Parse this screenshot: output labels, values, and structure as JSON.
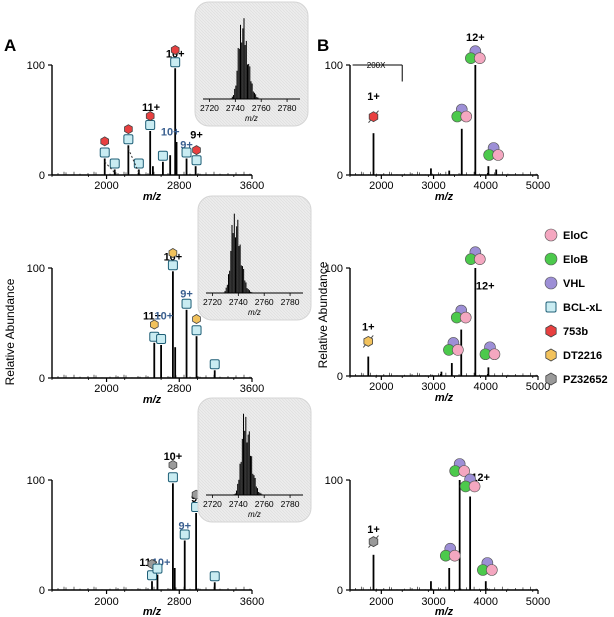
{
  "figure": {
    "panel_labels": [
      "A",
      "B"
    ],
    "y_axis_label": "Relative Abundance",
    "x_axis_label": "m/z",
    "scale_marker": "200X"
  },
  "legend": [
    {
      "name": "EloC",
      "shape": "circle",
      "color": "#f4a7c0"
    },
    {
      "name": "EloB",
      "shape": "circle",
      "color": "#4cc94c"
    },
    {
      "name": "VHL",
      "shape": "circle",
      "color": "#9d8fd6"
    },
    {
      "name": "BCL-xL",
      "shape": "square",
      "color": "#c9ecf2"
    },
    {
      "name": "753b",
      "shape": "hexagon",
      "color": "#e84040"
    },
    {
      "name": "DT2216",
      "shape": "hexagon",
      "color": "#f2c25c"
    },
    {
      "name": "PZ32652",
      "shape": "hexagon",
      "color": "#9a9a9a"
    }
  ],
  "chart_data": [
    {
      "id": "A1",
      "type": "bar",
      "xlabel": "m/z",
      "ylabel": "",
      "xlim": [
        1400,
        3600
      ],
      "ylim": [
        0,
        100
      ],
      "xticks": [
        2000,
        2800,
        3600
      ],
      "yticks": [
        0,
        100
      ],
      "peaks": [
        [
          1980,
          15
        ],
        [
          2090,
          5
        ],
        [
          2240,
          27
        ],
        [
          2355,
          5
        ],
        [
          2480,
          40
        ],
        [
          2510,
          8
        ],
        [
          2620,
          12
        ],
        [
          2700,
          18
        ],
        [
          2755,
          97
        ],
        [
          2770,
          30
        ],
        [
          2880,
          15
        ],
        [
          2980,
          8
        ]
      ],
      "annotations": [
        {
          "x": 1980,
          "y": 27,
          "text": ""
        },
        {
          "x": 2755,
          "y": 107,
          "text": "10+"
        },
        {
          "x": 2490,
          "y": 58,
          "text": "11+"
        },
        {
          "x": 2700,
          "y": 36,
          "text": "10+",
          "color": "blue"
        },
        {
          "x": 2880,
          "y": 24,
          "text": "9+",
          "color": "blue"
        },
        {
          "x": 2990,
          "y": 33,
          "text": "9+"
        }
      ]
    },
    {
      "id": "A2",
      "type": "bar",
      "xlabel": "m/z",
      "ylabel": "",
      "xlim": [
        1400,
        3600
      ],
      "ylim": [
        0,
        100
      ],
      "xticks": [
        2000,
        2800,
        3600
      ],
      "yticks": [
        0,
        100
      ],
      "peaks": [
        [
          2525,
          32
        ],
        [
          2600,
          30
        ],
        [
          2730,
          97
        ],
        [
          2755,
          28
        ],
        [
          2880,
          62
        ],
        [
          2990,
          38
        ],
        [
          3190,
          7
        ]
      ],
      "annotations": [
        {
          "x": 2730,
          "y": 107,
          "text": "10+"
        },
        {
          "x": 2880,
          "y": 73,
          "text": "9+",
          "color": "blue"
        },
        {
          "x": 2500,
          "y": 53,
          "text": "11+"
        },
        {
          "x": 2630,
          "y": 53,
          "text": "10+",
          "color": "blue"
        }
      ]
    },
    {
      "id": "A3",
      "type": "bar",
      "xlabel": "m/z",
      "ylabel": "",
      "xlim": [
        1400,
        3600
      ],
      "ylim": [
        0,
        100
      ],
      "xticks": [
        2000,
        2800,
        3600
      ],
      "yticks": [
        0,
        100
      ],
      "peaks": [
        [
          2500,
          8
        ],
        [
          2560,
          14
        ],
        [
          2730,
          97
        ],
        [
          2750,
          20
        ],
        [
          2860,
          45
        ],
        [
          2985,
          70
        ],
        [
          3190,
          7
        ]
      ],
      "annotations": [
        {
          "x": 2730,
          "y": 118,
          "text": "10+"
        },
        {
          "x": 2860,
          "y": 55,
          "text": "9+",
          "color": "blue"
        },
        {
          "x": 3000,
          "y": 80,
          "text": "9+"
        },
        {
          "x": 2460,
          "y": 22,
          "text": "11+"
        },
        {
          "x": 2600,
          "y": 22,
          "text": "10+",
          "color": "blue"
        }
      ]
    },
    {
      "id": "B1",
      "type": "bar",
      "xlabel": "m/z",
      "ylabel": "",
      "xlim": [
        1400,
        5000
      ],
      "ylim": [
        0,
        100
      ],
      "xticks": [
        2000,
        3000,
        4000,
        5000
      ],
      "yticks": [
        0,
        100
      ],
      "peaks": [
        [
          1850,
          38
        ],
        [
          2950,
          6
        ],
        [
          3300,
          4
        ],
        [
          3540,
          42
        ],
        [
          3800,
          100
        ],
        [
          4050,
          8
        ],
        [
          4200,
          5
        ]
      ],
      "annotations": [
        {
          "x": 3800,
          "y": 122,
          "text": "12+"
        },
        {
          "x": 1850,
          "y": 68,
          "text": "1+"
        }
      ]
    },
    {
      "id": "B2",
      "type": "bar",
      "xlabel": "m/z",
      "ylabel": "",
      "xlim": [
        1400,
        5000
      ],
      "ylim": [
        0,
        100
      ],
      "xticks": [
        2000,
        3000,
        4000,
        5000
      ],
      "yticks": [
        0,
        100
      ],
      "peaks": [
        [
          1750,
          18
        ],
        [
          3150,
          4
        ],
        [
          3350,
          12
        ],
        [
          3530,
          43
        ],
        [
          3800,
          100
        ],
        [
          4050,
          8
        ]
      ],
      "annotations": [
        {
          "x": 3990,
          "y": 80,
          "text": "12+"
        },
        {
          "x": 1750,
          "y": 42,
          "text": "1+"
        }
      ]
    },
    {
      "id": "B3",
      "type": "bar",
      "xlabel": "m/z",
      "ylabel": "",
      "xlim": [
        1400,
        5000
      ],
      "ylim": [
        0,
        100
      ],
      "xticks": [
        2000,
        3000,
        4000,
        5000
      ],
      "yticks": [
        0,
        100
      ],
      "peaks": [
        [
          1850,
          32
        ],
        [
          2950,
          8
        ],
        [
          3300,
          20
        ],
        [
          3500,
          100
        ],
        [
          3700,
          85
        ],
        [
          4000,
          8
        ]
      ],
      "annotations": [
        {
          "x": 3900,
          "y": 99,
          "text": "12+"
        },
        {
          "x": 1850,
          "y": 52,
          "text": "1+"
        }
      ]
    },
    {
      "id": "insets",
      "type": "line",
      "xlabel": "m/z",
      "xlim": [
        2715,
        2790
      ],
      "xticks": [
        2720,
        2740,
        2760,
        2780
      ]
    }
  ]
}
